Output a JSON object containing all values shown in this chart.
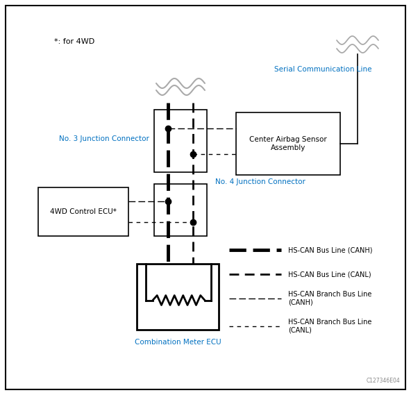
{
  "bg_color": "#ffffff",
  "border_color": "#000000",
  "blue_color": "#0070C0",
  "note_text": "*: for 4WD",
  "serial_comm_label": "Serial Communication Line",
  "no3_label": "No. 3 Junction Connector",
  "no4_label": "No. 4 Junction Connector",
  "center_airbag_label": "Center Airbag Sensor\nAssembly",
  "ecu4wd_label": "4WD Control ECU*",
  "combo_meter_label": "Combination Meter ECU",
  "legend_items": [
    "HS-CAN Bus Line (CANH)",
    "HS-CAN Bus Line (CANL)",
    "HS-CAN Branch Bus Line\n(CANH)",
    "HS-CAN Branch Bus Line\n(CANL)"
  ],
  "copyright": "C127346E04"
}
